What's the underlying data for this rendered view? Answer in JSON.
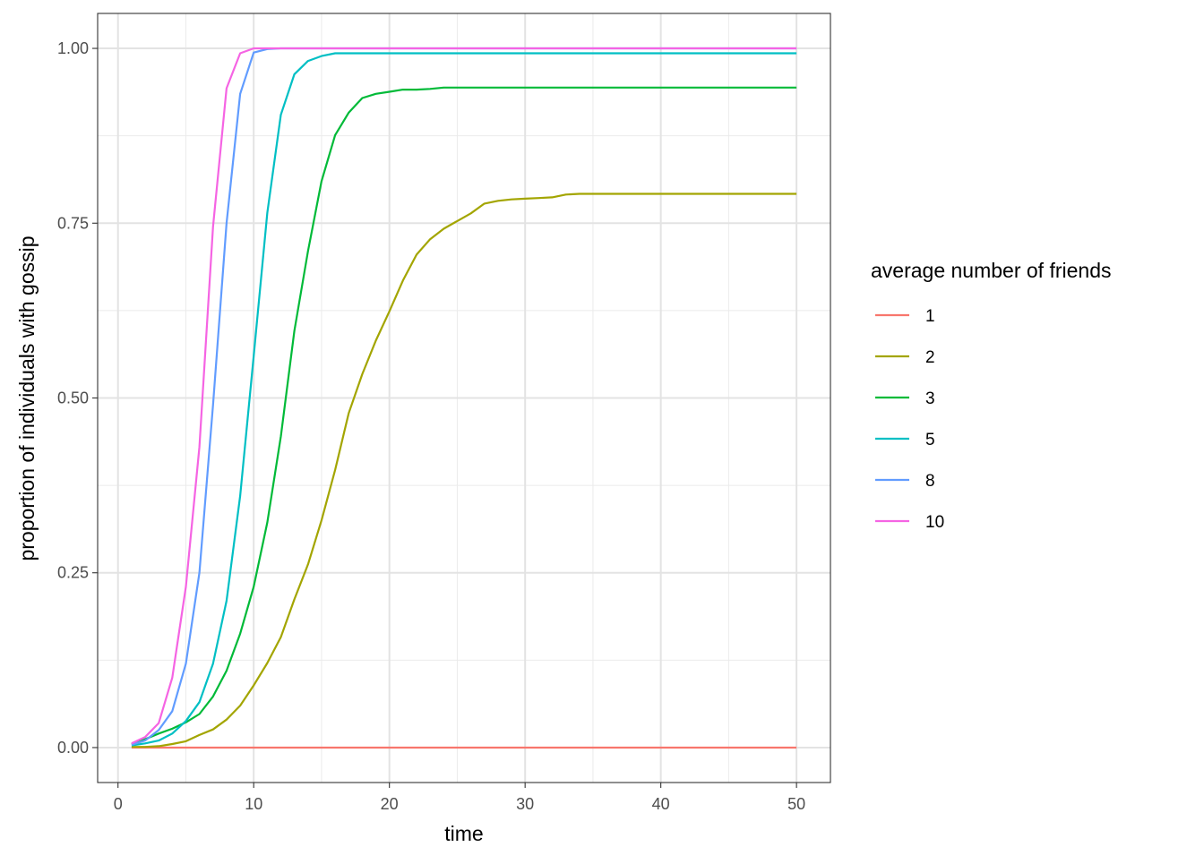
{
  "chart_data": {
    "type": "line",
    "title": "",
    "xlabel": "time",
    "ylabel": "proportion of individuals with gossip",
    "xlim": [
      -1.5,
      52.5
    ],
    "ylim": [
      -0.05,
      1.05
    ],
    "x_ticks": [
      0,
      10,
      20,
      30,
      40,
      50
    ],
    "x_tick_labels": [
      "0",
      "10",
      "20",
      "30",
      "40",
      "50"
    ],
    "y_ticks": [
      0,
      0.25,
      0.5,
      0.75,
      1.0
    ],
    "y_tick_labels": [
      "0.00",
      "0.25",
      "0.50",
      "0.75",
      "1.00"
    ],
    "grid": true,
    "legend": {
      "title": "average number of friends",
      "placement": "right"
    },
    "x": [
      1,
      2,
      3,
      4,
      5,
      6,
      7,
      8,
      9,
      10,
      11,
      12,
      13,
      14,
      15,
      16,
      17,
      18,
      19,
      20,
      21,
      22,
      23,
      24,
      25,
      26,
      27,
      28,
      29,
      30,
      31,
      32,
      33,
      34,
      35,
      36,
      37,
      38,
      39,
      40,
      41,
      42,
      43,
      44,
      45,
      46,
      47,
      48,
      49,
      50
    ],
    "series": [
      {
        "name": "1",
        "color": "#F8766D",
        "values": [
          0,
          0,
          0,
          0,
          0,
          0,
          0,
          0,
          0,
          0,
          0,
          0,
          0,
          0,
          0,
          0,
          0,
          0,
          0,
          0,
          0,
          0,
          0,
          0,
          0,
          0,
          0,
          0,
          0,
          0,
          0,
          0,
          0,
          0,
          0,
          0,
          0,
          0,
          0,
          0,
          0,
          0,
          0,
          0,
          0,
          0,
          0,
          0,
          0,
          0
        ]
      },
      {
        "name": "2",
        "color": "#A3A500",
        "values": [
          0.001,
          0.001,
          0.002,
          0.005,
          0.009,
          0.018,
          0.026,
          0.04,
          0.06,
          0.089,
          0.121,
          0.158,
          0.212,
          0.262,
          0.325,
          0.397,
          0.478,
          0.534,
          0.582,
          0.624,
          0.668,
          0.705,
          0.727,
          0.742,
          0.753,
          0.764,
          0.778,
          0.782,
          0.784,
          0.785,
          0.786,
          0.787,
          0.791,
          0.792,
          0.792,
          0.792,
          0.792,
          0.792,
          0.792,
          0.792,
          0.792,
          0.792,
          0.792,
          0.792,
          0.792,
          0.792,
          0.792,
          0.792,
          0.792,
          0.792
        ]
      },
      {
        "name": "3",
        "color": "#00BA38",
        "values": [
          0.005,
          0.012,
          0.02,
          0.027,
          0.036,
          0.048,
          0.073,
          0.11,
          0.163,
          0.23,
          0.322,
          0.445,
          0.596,
          0.71,
          0.81,
          0.876,
          0.908,
          0.929,
          0.935,
          0.938,
          0.941,
          0.941,
          0.942,
          0.944,
          0.944,
          0.944,
          0.944,
          0.944,
          0.944,
          0.944,
          0.944,
          0.944,
          0.944,
          0.944,
          0.944,
          0.944,
          0.944,
          0.944,
          0.944,
          0.944,
          0.944,
          0.944,
          0.944,
          0.944,
          0.944,
          0.944,
          0.944,
          0.944,
          0.944,
          0.944
        ]
      },
      {
        "name": "5",
        "color": "#00BFC4",
        "values": [
          0.003,
          0.006,
          0.01,
          0.02,
          0.038,
          0.065,
          0.12,
          0.21,
          0.36,
          0.56,
          0.765,
          0.905,
          0.963,
          0.982,
          0.989,
          0.993,
          0.993,
          0.993,
          0.993,
          0.993,
          0.993,
          0.993,
          0.993,
          0.993,
          0.993,
          0.993,
          0.993,
          0.993,
          0.993,
          0.993,
          0.993,
          0.993,
          0.993,
          0.993,
          0.993,
          0.993,
          0.993,
          0.993,
          0.993,
          0.993,
          0.993,
          0.993,
          0.993,
          0.993,
          0.993,
          0.993,
          0.993,
          0.993,
          0.993,
          0.993
        ]
      },
      {
        "name": "8",
        "color": "#619CFF",
        "values": [
          0.004,
          0.01,
          0.025,
          0.052,
          0.12,
          0.25,
          0.49,
          0.75,
          0.935,
          0.994,
          0.999,
          1,
          1,
          1,
          1,
          1,
          1,
          1,
          1,
          1,
          1,
          1,
          1,
          1,
          1,
          1,
          1,
          1,
          1,
          1,
          1,
          1,
          1,
          1,
          1,
          1,
          1,
          1,
          1,
          1,
          1,
          1,
          1,
          1,
          1,
          1,
          1,
          1,
          1,
          1
        ]
      },
      {
        "name": "10",
        "color": "#F564E3",
        "values": [
          0.006,
          0.015,
          0.035,
          0.1,
          0.23,
          0.43,
          0.745,
          0.943,
          0.993,
          1,
          1,
          1,
          1,
          1,
          1,
          1,
          1,
          1,
          1,
          1,
          1,
          1,
          1,
          1,
          1,
          1,
          1,
          1,
          1,
          1,
          1,
          1,
          1,
          1,
          1,
          1,
          1,
          1,
          1,
          1,
          1,
          1,
          1,
          1,
          1,
          1,
          1,
          1,
          1,
          1
        ]
      }
    ]
  }
}
